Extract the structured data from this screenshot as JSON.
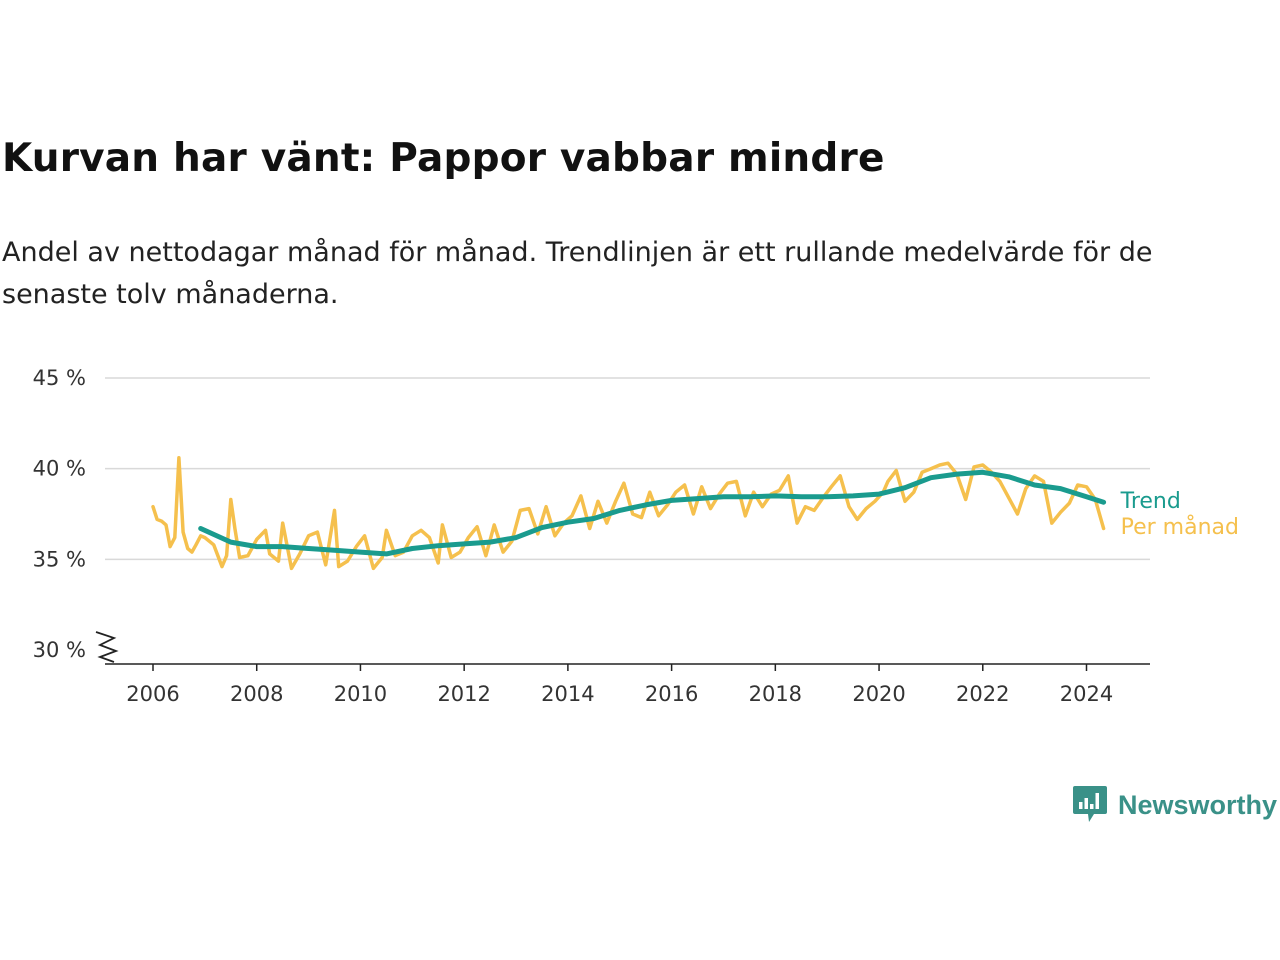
{
  "title": "Kurvan har vänt: Pappor vabbar mindre",
  "subtitle": "Andel av nettodagar månad för månad. Trendlinjen är ett rullande medelvärde för de senaste tolv månaderna.",
  "brand": {
    "name": "Newsworthy",
    "icon": "newsworthy-logo-icon",
    "color": "#3a9188"
  },
  "colors": {
    "trend": "#1a9b8e",
    "monthly": "#f5c04d",
    "grid": "#d9d9d9",
    "axis": "#222222"
  },
  "chart_data": {
    "type": "line",
    "title": "Kurvan har vänt: Pappor vabbar mindre",
    "xlabel": "",
    "ylabel": "",
    "xlim": [
      2006,
      2024.33
    ],
    "ylim": [
      30,
      45
    ],
    "y_axis_broken_at_min": true,
    "grid": true,
    "x_tick_labels": [
      "2006",
      "2008",
      "2010",
      "2012",
      "2014",
      "2016",
      "2018",
      "2020",
      "2022",
      "2024"
    ],
    "y_tick_values": [
      30,
      35,
      40,
      45
    ],
    "y_tick_labels": [
      "30 %",
      "35 %",
      "40 %",
      "45 %"
    ],
    "series": [
      {
        "name": "Trend",
        "color": "#1a9b8e",
        "x": [
          2006.92,
          2007.5,
          2008,
          2008.5,
          2009,
          2009.5,
          2010,
          2010.5,
          2011,
          2011.5,
          2012,
          2012.5,
          2013,
          2013.5,
          2014,
          2014.5,
          2015,
          2015.5,
          2016,
          2016.5,
          2017,
          2017.5,
          2018,
          2018.5,
          2019,
          2019.5,
          2020,
          2020.5,
          2021,
          2021.5,
          2022,
          2022.5,
          2023,
          2023.5,
          2024,
          2024.33
        ],
        "values": [
          36.7,
          35.95,
          35.7,
          35.7,
          35.6,
          35.5,
          35.4,
          35.3,
          35.6,
          35.75,
          35.85,
          35.95,
          36.2,
          36.75,
          37.05,
          37.25,
          37.7,
          38,
          38.25,
          38.35,
          38.45,
          38.45,
          38.5,
          38.45,
          38.45,
          38.5,
          38.6,
          38.95,
          39.5,
          39.7,
          39.8,
          39.55,
          39.1,
          38.9,
          38.45,
          38.15
        ]
      },
      {
        "name": "Per månad",
        "color": "#f5c04d",
        "x": [
          2006,
          2006.08,
          2006.17,
          2006.25,
          2006.33,
          2006.42,
          2006.5,
          2006.58,
          2006.67,
          2006.75,
          2006.83,
          2006.92,
          2007,
          2007.17,
          2007.33,
          2007.42,
          2007.5,
          2007.58,
          2007.67,
          2007.83,
          2008,
          2008.17,
          2008.25,
          2008.42,
          2008.5,
          2008.67,
          2008.83,
          2009,
          2009.17,
          2009.33,
          2009.5,
          2009.58,
          2009.75,
          2009.92,
          2010.08,
          2010.25,
          2010.42,
          2010.5,
          2010.67,
          2010.83,
          2011,
          2011.17,
          2011.33,
          2011.5,
          2011.58,
          2011.75,
          2011.92,
          2012.08,
          2012.25,
          2012.42,
          2012.58,
          2012.75,
          2012.92,
          2013.08,
          2013.25,
          2013.42,
          2013.58,
          2013.75,
          2013.92,
          2014.08,
          2014.25,
          2014.42,
          2014.58,
          2014.75,
          2014.92,
          2015.08,
          2015.25,
          2015.42,
          2015.58,
          2015.75,
          2015.92,
          2016.08,
          2016.25,
          2016.42,
          2016.58,
          2016.75,
          2016.92,
          2017.08,
          2017.25,
          2017.42,
          2017.58,
          2017.75,
          2017.92,
          2018.08,
          2018.25,
          2018.42,
          2018.58,
          2018.75,
          2018.92,
          2019.08,
          2019.25,
          2019.42,
          2019.58,
          2019.75,
          2019.92,
          2020.08,
          2020.17,
          2020.33,
          2020.5,
          2020.67,
          2020.83,
          2021,
          2021.17,
          2021.33,
          2021.5,
          2021.67,
          2021.83,
          2022,
          2022.17,
          2022.33,
          2022.5,
          2022.67,
          2022.83,
          2023,
          2023.17,
          2023.33,
          2023.5,
          2023.67,
          2023.83,
          2024,
          2024.17,
          2024.33
        ],
        "values": [
          37.9,
          37.2,
          37.1,
          36.9,
          35.7,
          36.2,
          40.6,
          36.5,
          35.6,
          35.4,
          35.8,
          36.3,
          36.2,
          35.8,
          34.6,
          35.2,
          38.3,
          36.7,
          35.1,
          35.2,
          36.1,
          36.6,
          35.3,
          34.9,
          37.0,
          34.5,
          35.3,
          36.3,
          36.5,
          34.7,
          37.7,
          34.6,
          34.9,
          35.7,
          36.3,
          34.5,
          35.1,
          36.6,
          35.2,
          35.4,
          36.3,
          36.6,
          36.2,
          34.8,
          36.9,
          35.1,
          35.4,
          36.2,
          36.8,
          35.2,
          36.9,
          35.4,
          36.0,
          37.7,
          37.8,
          36.4,
          37.9,
          36.3,
          37.0,
          37.4,
          38.5,
          36.7,
          38.2,
          37.0,
          38.2,
          39.2,
          37.5,
          37.3,
          38.7,
          37.4,
          38.0,
          38.7,
          39.1,
          37.5,
          39.0,
          37.8,
          38.6,
          39.2,
          39.3,
          37.4,
          38.7,
          37.9,
          38.6,
          38.8,
          39.6,
          37.0,
          37.9,
          37.7,
          38.4,
          39.0,
          39.6,
          37.9,
          37.2,
          37.8,
          38.2,
          38.7,
          39.3,
          39.9,
          38.2,
          38.7,
          39.8,
          40.0,
          40.2,
          40.3,
          39.7,
          38.3,
          40.1,
          40.2,
          39.8,
          39.3,
          38.4,
          37.5,
          38.9,
          39.6,
          39.3,
          37.0,
          37.6,
          38.1,
          39.1,
          39.0,
          38.3,
          36.7
        ]
      }
    ]
  }
}
